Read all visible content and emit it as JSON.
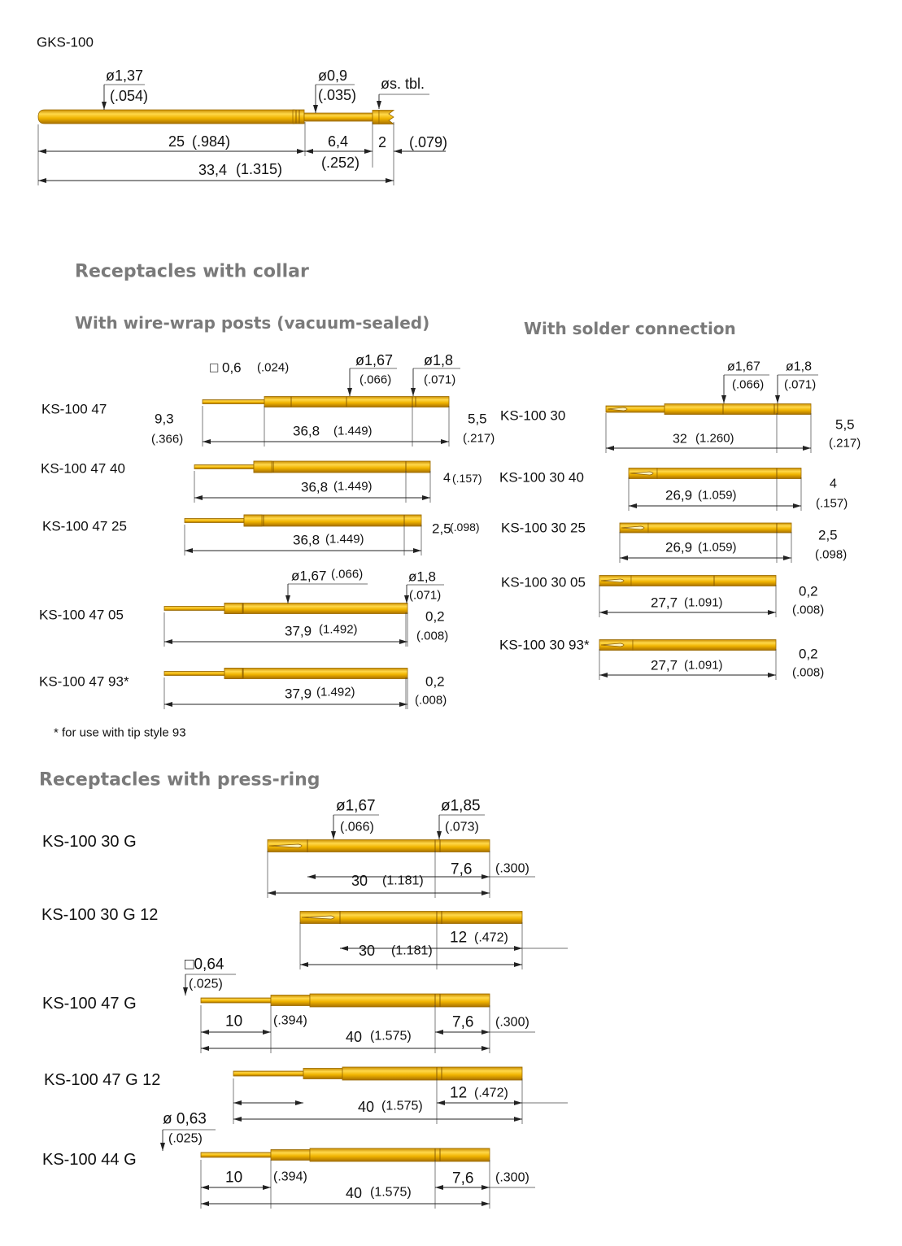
{
  "colors": {
    "pin": "#f0b400",
    "pin_dark": "#a87000",
    "title": "#7a7a7a",
    "line": "#222222"
  },
  "gks": {
    "label": "GKS-100",
    "dims": [
      "ø1,37",
      "(.054)",
      "ø0,9",
      "(.035)",
      "øs. tbl.",
      "25",
      "(.984)",
      "6,4",
      "(.252)",
      "2",
      "(.079)",
      "33,4",
      "(1.315)"
    ]
  },
  "section_collar": {
    "title": "Receptacles with collar",
    "wire_wrap_title": "With wire-wrap posts (vacuum-sealed)",
    "solder_title": "With solder connection",
    "footnote": "* for use with tip style 93"
  },
  "wire_wrap": [
    {
      "label": "KS-100 47",
      "dims": [
        "□ 0,6",
        "(.024)",
        "ø1,67",
        "(.066)",
        "ø1,8",
        "(.071)",
        "9,3",
        "(.366)",
        "36,8",
        "(1.449)",
        "5,5",
        "(.217)"
      ]
    },
    {
      "label": "KS-100 47 40",
      "dims": [
        "36,8",
        "(1.449)",
        "4",
        "(.157)"
      ]
    },
    {
      "label": "KS-100 47 25",
      "dims": [
        "36,8",
        "(1.449)",
        "2,5",
        "(.098)"
      ]
    },
    {
      "label": "KS-100 47 05",
      "dims": [
        "ø1,67",
        "(.066)",
        "ø1,8",
        "(.071)",
        "37,9",
        "(1.492)",
        "0,2",
        "(.008)"
      ]
    },
    {
      "label": "KS-100 47 93*",
      "dims": [
        "37,9",
        "(1.492)",
        "0,2",
        "(.008)"
      ]
    }
  ],
  "solder": [
    {
      "label": "KS-100 30",
      "dims": [
        "ø1,67",
        "(.066)",
        "ø1,8",
        "(.071)",
        "32",
        "(1.260)",
        "5,5",
        "(.217)"
      ]
    },
    {
      "label": "KS-100 30 40",
      "dims": [
        "26,9",
        "(1.059)",
        "4",
        "(.157)"
      ]
    },
    {
      "label": "KS-100 30 25",
      "dims": [
        "26,9",
        "(1.059)",
        "2,5",
        "(.098)"
      ]
    },
    {
      "label": "KS-100 30 05",
      "dims": [
        "27,7",
        "(1.091)",
        "0,2",
        "(.008)"
      ]
    },
    {
      "label": "KS-100 30 93*",
      "dims": [
        "27,7",
        "(1.091)",
        "0,2",
        "(.008)"
      ]
    }
  ],
  "section_press": {
    "title": "Receptacles with press-ring"
  },
  "press": [
    {
      "label": "KS-100 30 G",
      "dims": [
        "ø1,67",
        "(.066)",
        "ø1,85",
        "(.073)",
        "30",
        "(1.181)",
        "7,6",
        "(.300)"
      ]
    },
    {
      "label": "KS-100 30 G 12",
      "dims": [
        "30",
        "(1.181)",
        "12",
        "(.472)"
      ]
    },
    {
      "label": "KS-100 47 G",
      "dims": [
        "□0,64",
        "(.025)",
        "10",
        "(.394)",
        "7,6",
        "(.300)",
        "40",
        "(1.575)"
      ]
    },
    {
      "label": "KS-100 47 G 12",
      "dims": [
        "40",
        "(1.575)",
        "12",
        "(.472)"
      ]
    },
    {
      "label": "KS-100 44 G",
      "dims": [
        "ø 0,63",
        "(.025)",
        "10",
        "(.394)",
        "7,6",
        "(.300)",
        "40",
        "(1.575)"
      ]
    }
  ]
}
